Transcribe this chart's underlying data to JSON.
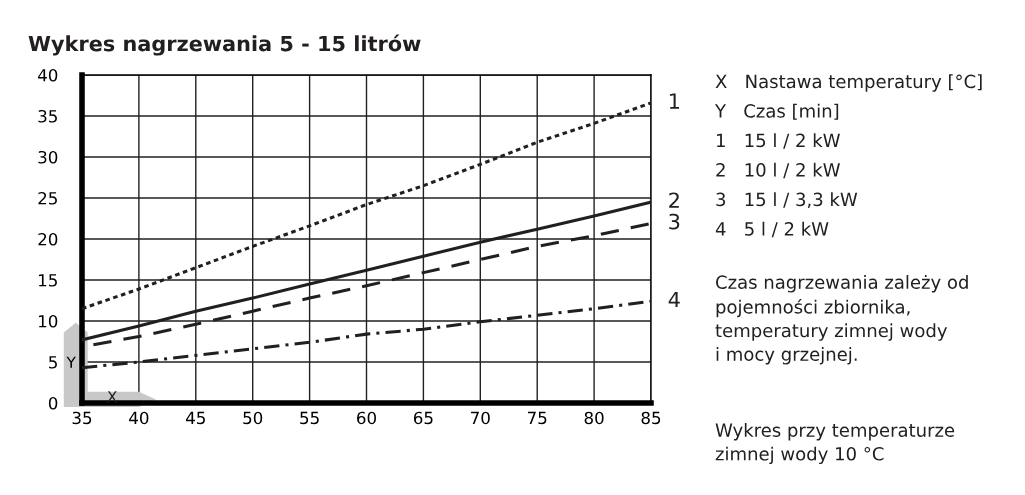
{
  "chart_data": {
    "type": "line",
    "title": "Wykres nagrzewania 5 - 15 litrów",
    "x": [
      35,
      40,
      45,
      50,
      55,
      60,
      65,
      70,
      75,
      80,
      85
    ],
    "series": [
      {
        "name": "1",
        "color": "#231f20",
        "line_style": "dotted",
        "values": [
          11.5,
          13.9,
          16.5,
          19.1,
          21.6,
          24.2,
          26.5,
          29.1,
          31.8,
          34.1,
          36.6
        ]
      },
      {
        "name": "2",
        "color": "#231f20",
        "line_style": "solid",
        "values": [
          7.7,
          9.4,
          11.2,
          12.8,
          14.5,
          16.2,
          17.9,
          19.6,
          21.2,
          22.8,
          24.5
        ]
      },
      {
        "name": "3",
        "color": "#231f20",
        "line_style": "dashed",
        "x": [
          36,
          40,
          45,
          50,
          55,
          60,
          65,
          70,
          75,
          80,
          85
        ],
        "values": [
          7.1,
          8.1,
          9.6,
          11.2,
          12.8,
          14.3,
          15.9,
          17.5,
          19.1,
          20.4,
          21.9
        ]
      },
      {
        "name": "4",
        "color": "#231f20",
        "line_style": "dashdot",
        "values": [
          4.3,
          5.0,
          5.8,
          6.6,
          7.4,
          8.4,
          9.0,
          9.9,
          10.7,
          11.5,
          12.4
        ]
      }
    ],
    "xlim": [
      35,
      85
    ],
    "xticks": [
      35,
      40,
      45,
      50,
      55,
      60,
      65,
      70,
      75,
      80,
      85
    ],
    "ylim": [
      0,
      40
    ],
    "yticks": [
      0,
      5,
      10,
      15,
      20,
      25,
      30,
      35,
      40
    ],
    "grid": true,
    "legend": false,
    "annotations": [
      "X   Nastawa temperatury [°C]",
      "Y   Czas [min]",
      "1   15 l / 2 kW",
      "2   10 l / 2 kW",
      "3   15 l / 3,3 kW",
      "4   5 l / 2 kW",
      "Czas nagrzewania zależy od\npojemności zbiornika,\ntemperatury zimnej wody\ni mocy grzejnej.",
      "Wykres przy temperaturze\nzimnej wody 10 °C",
      "Y",
      "X"
    ]
  }
}
